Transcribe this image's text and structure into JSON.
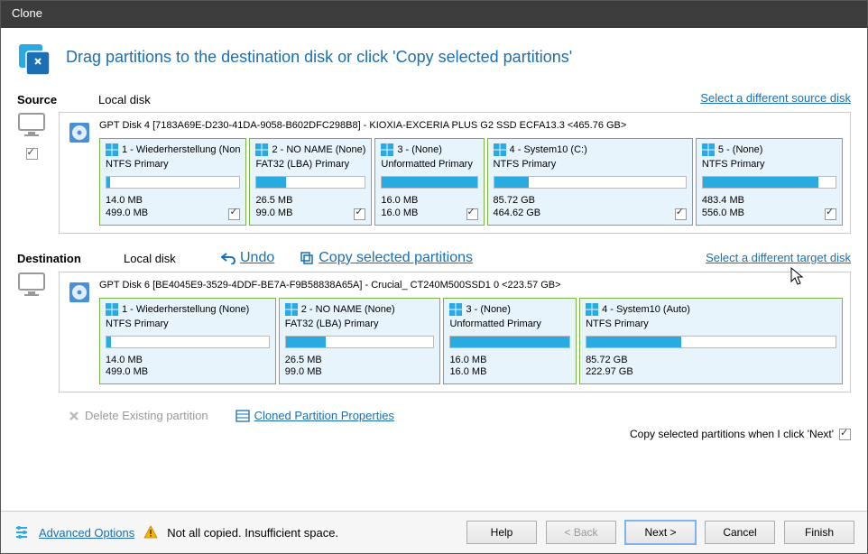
{
  "window": {
    "title": "Clone"
  },
  "header": {
    "title": "Drag partitions to the destination disk or click 'Copy selected partitions'"
  },
  "source": {
    "label": "Source",
    "sublabel": "Local disk",
    "select_link": "Select a different source disk",
    "disk_title": "GPT Disk 4 [7183A69E-D230-41DA-9058-B602DFC298B8] - KIOXIA-EXCERIA PLUS G2 SSD ECFA13.3  <465.76 GB>",
    "master_checked": true,
    "partitions": [
      {
        "name": "1 - Wiederherstellung (Non",
        "fs": "NTFS Primary",
        "used": "14.0 MB",
        "total": "499.0 MB",
        "fill_pct": 3,
        "checked": true,
        "flex": 1.6
      },
      {
        "name": "2 - NO NAME (None)",
        "fs": "FAT32 (LBA) Primary",
        "used": "26.5 MB",
        "total": "99.0 MB",
        "fill_pct": 27,
        "checked": true,
        "flex": 1.3
      },
      {
        "name": "3 -  (None)",
        "fs": "Unformatted Primary",
        "used": "16.0 MB",
        "total": "16.0 MB",
        "fill_pct": 100,
        "checked": true,
        "flex": 1.15
      },
      {
        "name": "4 - System10 (C:)",
        "fs": "NTFS Primary",
        "used": "85.72 GB",
        "total": "464.62 GB",
        "fill_pct": 18,
        "checked": true,
        "flex": 2.3
      },
      {
        "name": "5 -  (None)",
        "fs": "NTFS Primary",
        "used": "483.4 MB",
        "total": "556.0 MB",
        "fill_pct": 87,
        "checked": true,
        "flex": 1.6
      }
    ]
  },
  "destination": {
    "label": "Destination",
    "sublabel": "Local disk",
    "undo": "Undo",
    "copy": "Copy selected partitions",
    "select_link": "Select a different target disk",
    "disk_title": "GPT Disk 6 [BE4045E9-3529-4DDF-BE7A-F9B58838A65A] - Crucial_ CT240M500SSD1    0  <223.57 GB>",
    "partitions": [
      {
        "name": "1 - Wiederherstellung (None)",
        "fs": "NTFS Primary",
        "used": "14.0 MB",
        "total": "499.0 MB",
        "fill_pct": 3,
        "flex": 1.7
      },
      {
        "name": "2 - NO NAME (None)",
        "fs": "FAT32 (LBA) Primary",
        "used": "26.5 MB",
        "total": "99.0 MB",
        "fill_pct": 27,
        "flex": 1.55
      },
      {
        "name": "3 -  (None)",
        "fs": "Unformatted Primary",
        "used": "16.0 MB",
        "total": "16.0 MB",
        "fill_pct": 100,
        "flex": 1.25
      },
      {
        "name": "4 - System10 (Auto)",
        "fs": "NTFS Primary",
        "used": "85.72 GB",
        "total": "222.97 GB",
        "fill_pct": 38,
        "flex": 2.6
      }
    ]
  },
  "middle_actions": {
    "delete": "Delete Existing partition",
    "properties": "Cloned Partition Properties"
  },
  "footer_option": {
    "label": "Copy selected partitions when I click 'Next'",
    "checked": true
  },
  "buttons": {
    "advanced": "Advanced Options",
    "warning": "Not all copied. Insufficient space.",
    "help": "Help",
    "back": "< Back",
    "next": "Next >",
    "cancel": "Cancel",
    "finish": "Finish"
  },
  "colors": {
    "accent": "#1a6fb5",
    "bar_fill": "#29abe2",
    "partition_border": "#7cb342",
    "partition_bg": "#e8f4fc"
  }
}
